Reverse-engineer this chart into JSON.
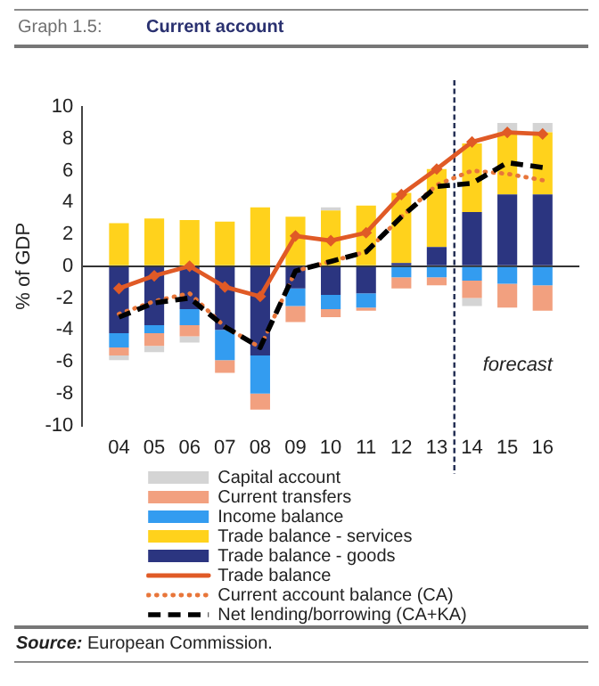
{
  "chart_data": {
    "type": "bar",
    "title": "Current account",
    "ylabel": "% of GDP",
    "annotations": [
      "Graph 1.5:",
      "Source: European Commission."
    ],
    "x": [
      2004,
      2005,
      2006,
      2007,
      2008,
      2009,
      2010,
      2011,
      2012,
      2013,
      2014,
      2015,
      2016
    ],
    "xlim": [
      2003.5,
      2016.5
    ],
    "xticks": [
      {
        "value": 2004,
        "label": "04"
      },
      {
        "value": 2005,
        "label": "05"
      },
      {
        "value": 2006,
        "label": "06"
      },
      {
        "value": 2007,
        "label": "07"
      },
      {
        "value": 2008,
        "label": "08"
      },
      {
        "value": 2009,
        "label": "09"
      },
      {
        "value": 2010,
        "label": "10"
      },
      {
        "value": 2011,
        "label": "11"
      },
      {
        "value": 2012,
        "label": "12"
      },
      {
        "value": 2013,
        "label": "13"
      },
      {
        "value": 2014,
        "label": "14"
      },
      {
        "value": 2015,
        "label": "15"
      },
      {
        "value": 2016,
        "label": "16"
      }
    ],
    "ylim": [
      -10,
      10
    ],
    "yticks": [
      -10,
      -8,
      -6,
      -4,
      -2,
      0,
      2,
      4,
      6,
      8,
      10
    ],
    "stacked": true,
    "legend": "bottom",
    "ref_lines": [
      {
        "axis": "x",
        "value": 2013.5,
        "label": "forecast",
        "color": "#1f2a50",
        "line_style": "dashed"
      }
    ],
    "series": [
      {
        "name": "Trade balance - goods",
        "color": "#2b3580",
        "values": [
          -4.2,
          -3.7,
          -2.7,
          -4.0,
          -5.6,
          -1.4,
          -1.8,
          -1.7,
          0.2,
          1.2,
          3.4,
          4.5,
          4.5
        ]
      },
      {
        "name": "Trade balance - services",
        "color": "#ffd21c",
        "values": [
          2.7,
          3.0,
          2.9,
          2.8,
          3.7,
          3.1,
          3.5,
          3.8,
          4.4,
          4.9,
          4.3,
          3.9,
          3.9
        ]
      },
      {
        "name": "Income balance",
        "color": "#339cf0",
        "values": [
          -0.9,
          -0.5,
          -1.0,
          -1.9,
          -2.4,
          -1.1,
          -0.9,
          -0.9,
          -0.7,
          -0.7,
          -0.9,
          -1.1,
          -1.2
        ]
      },
      {
        "name": "Current transfers",
        "color": "#f2a07f",
        "values": [
          -0.5,
          -0.8,
          -0.7,
          -0.8,
          -1.0,
          -1.0,
          -0.5,
          -0.2,
          -0.7,
          -0.5,
          -1.1,
          -1.5,
          -1.6
        ]
      },
      {
        "name": "Capital account",
        "color": "#d4d4d4",
        "values": [
          -0.3,
          -0.4,
          -0.4,
          null,
          null,
          null,
          0.2,
          null,
          null,
          null,
          -0.5,
          0.6,
          0.6
        ]
      },
      {
        "name": "Trade balance",
        "type": "line",
        "color": "#e05a26",
        "marker": "diamond",
        "line_style": "solid",
        "values": [
          -1.4,
          -0.6,
          0.0,
          -1.3,
          -1.9,
          1.9,
          1.6,
          2.1,
          4.5,
          6.1,
          7.8,
          8.4,
          8.3
        ]
      },
      {
        "name": "Current account balance (CA)",
        "type": "line",
        "color": "#e8763a",
        "line_style": "dotted",
        "values": [
          -3.0,
          -2.2,
          -1.7,
          -3.8,
          -5.1,
          -0.3,
          0.3,
          0.9,
          3.1,
          5.1,
          6.0,
          5.8,
          5.4
        ]
      },
      {
        "name": "Net lending/borrowing (CA+KA)",
        "type": "line",
        "color": "#000000",
        "line_style": "dashed",
        "values": [
          -3.2,
          -2.3,
          -2.0,
          -3.8,
          -5.1,
          -0.3,
          0.3,
          0.9,
          3.1,
          5.0,
          5.2,
          6.5,
          6.2
        ]
      }
    ]
  }
}
